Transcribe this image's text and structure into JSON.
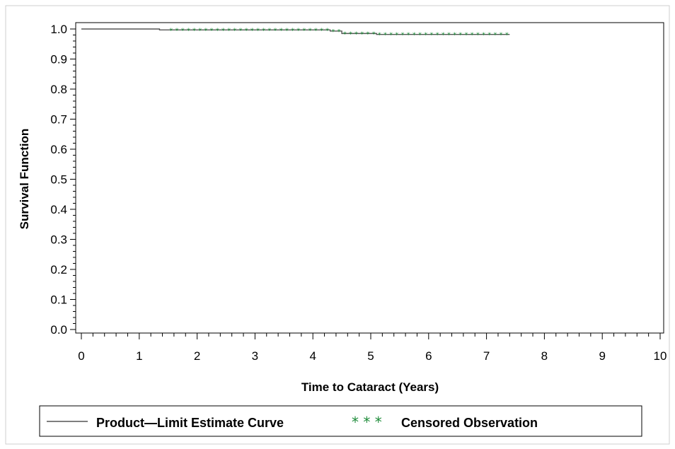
{
  "chart_data": {
    "type": "line",
    "xlabel": "Time to Cataract (Years)",
    "ylabel": "Survival Function",
    "xlim": [
      0,
      10
    ],
    "ylim": [
      0,
      1
    ],
    "x_ticks": [
      "0",
      "1",
      "2",
      "3",
      "4",
      "5",
      "6",
      "7",
      "8",
      "9",
      "10"
    ],
    "y_ticks": [
      "0.0",
      "0.1",
      "0.2",
      "0.3",
      "0.4",
      "0.5",
      "0.6",
      "0.7",
      "0.8",
      "0.9",
      "1.0"
    ],
    "grid": false,
    "legend": {
      "placement": "bottom",
      "entries": [
        {
          "label": "Product—Limit Estimate Curve",
          "marker": "line",
          "color": "#555555"
        },
        {
          "label": "Censored Observation",
          "marker": "* * *",
          "color": "#1e8c3a"
        }
      ]
    },
    "series": [
      {
        "curve": "step",
        "color": "#555555",
        "x": [
          0,
          1.35,
          4.3,
          4.5,
          5.1,
          7.4
        ],
        "y": [
          1.0,
          0.997,
          0.993,
          0.985,
          0.982,
          0.982
        ]
      }
    ],
    "censored": {
      "color": "#1e8c3a",
      "x": [
        1.55,
        1.65,
        1.75,
        1.85,
        1.95,
        2.05,
        2.15,
        2.25,
        2.35,
        2.45,
        2.55,
        2.65,
        2.75,
        2.85,
        2.95,
        3.05,
        3.15,
        3.25,
        3.35,
        3.45,
        3.55,
        3.65,
        3.75,
        3.85,
        3.95,
        4.05,
        4.15,
        4.25,
        4.35,
        4.45,
        4.55,
        4.65,
        4.75,
        4.85,
        4.95,
        5.05,
        5.15,
        5.25,
        5.35,
        5.45,
        5.55,
        5.65,
        5.75,
        5.85,
        5.95,
        6.05,
        6.15,
        6.25,
        6.35,
        6.45,
        6.55,
        6.65,
        6.75,
        6.85,
        6.95,
        7.05,
        7.15,
        7.25,
        7.35
      ]
    }
  }
}
